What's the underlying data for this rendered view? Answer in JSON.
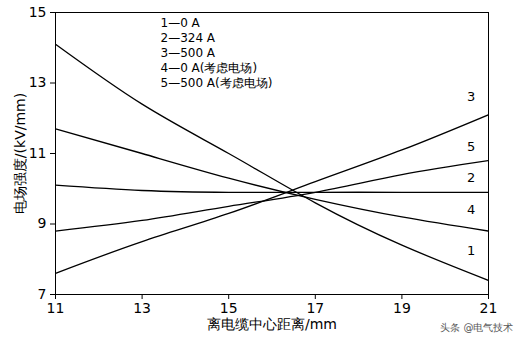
{
  "chart_data": {
    "type": "line",
    "x_label": "离电缆中心距离/mm",
    "y_label": "电场强度/(kV/mm)",
    "x": [
      11,
      13,
      15,
      17,
      19,
      21
    ],
    "series": [
      {
        "name": "1—0 A",
        "color": "#000000",
        "values": [
          14.1,
          12.4,
          11.0,
          9.6,
          8.4,
          7.4
        ]
      },
      {
        "name": "2—324 A",
        "color": "#000000",
        "values": [
          10.1,
          9.95,
          9.9,
          9.9,
          9.9,
          9.9
        ]
      },
      {
        "name": "3—500 A",
        "color": "#000000",
        "values": [
          7.6,
          8.5,
          9.3,
          10.2,
          11.1,
          12.1
        ]
      },
      {
        "name": "4—0 A(考虑电场)",
        "color": "#000000",
        "values": [
          11.7,
          11.0,
          10.3,
          9.7,
          9.2,
          8.8
        ]
      },
      {
        "name": "5—500 A(考虑电场)",
        "color": "#000000",
        "values": [
          8.8,
          9.1,
          9.5,
          9.9,
          10.4,
          10.8
        ]
      }
    ],
    "xlim": [
      11,
      21
    ],
    "xticks": [
      11,
      13,
      15,
      17,
      19,
      21
    ],
    "ylim": [
      7,
      15
    ],
    "yticks": [
      7,
      9,
      11,
      13,
      15
    ],
    "grid": false,
    "legend": "top-left",
    "annotations": [
      {
        "text": "3",
        "x": 20.6,
        "y": 12.6
      },
      {
        "text": "5",
        "x": 20.6,
        "y": 11.2
      },
      {
        "text": "2",
        "x": 20.6,
        "y": 10.3
      },
      {
        "text": "4",
        "x": 20.6,
        "y": 9.4
      },
      {
        "text": "1",
        "x": 20.6,
        "y": 8.25
      }
    ],
    "watermark": "头条 @电气技术"
  }
}
